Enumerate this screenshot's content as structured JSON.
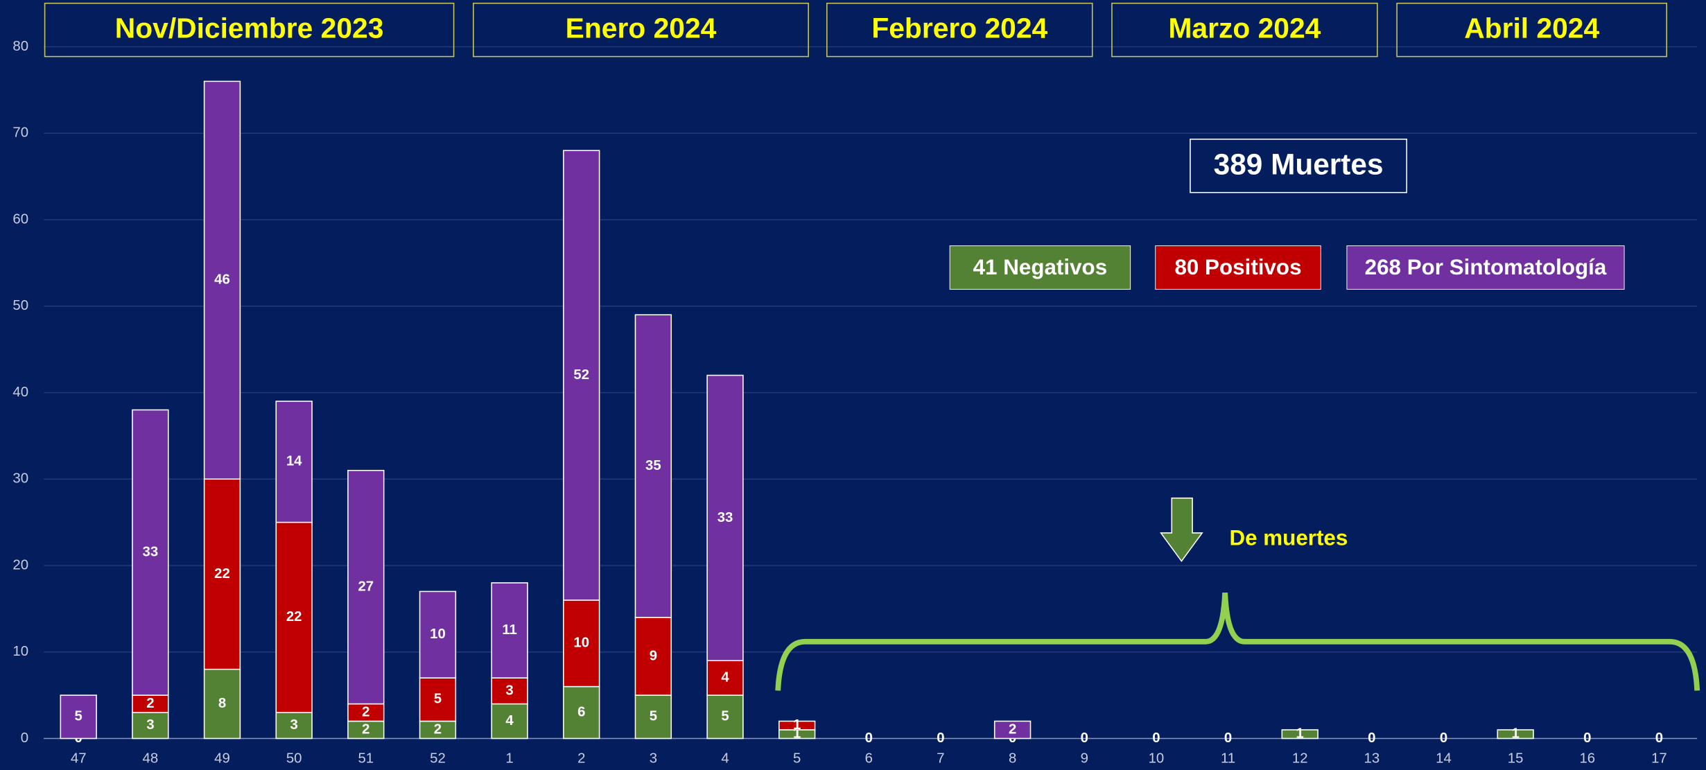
{
  "chart_data": {
    "type": "stacked_bar",
    "categories": [
      "47",
      "48",
      "49",
      "50",
      "51",
      "52",
      "1",
      "2",
      "3",
      "4",
      "5",
      "6",
      "7",
      "8",
      "9",
      "10",
      "11",
      "12",
      "13",
      "14",
      "15",
      "16",
      "17"
    ],
    "series": [
      {
        "name": "41 Negativos",
        "color": "#548235",
        "values": [
          0,
          3,
          8,
          3,
          2,
          2,
          4,
          6,
          5,
          5,
          1,
          0,
          0,
          0,
          0,
          0,
          0,
          1,
          0,
          0,
          1,
          0,
          0
        ]
      },
      {
        "name": "80 Positivos",
        "color": "#c00000",
        "values": [
          0,
          2,
          22,
          22,
          2,
          5,
          3,
          10,
          9,
          4,
          1,
          0,
          0,
          0,
          0,
          0,
          0,
          0,
          0,
          0,
          0,
          0,
          0
        ]
      },
      {
        "name": "268 Por Sintomatología",
        "color": "#7030a0",
        "values": [
          5,
          33,
          46,
          14,
          27,
          10,
          11,
          52,
          35,
          33,
          0,
          0,
          0,
          2,
          0,
          0,
          0,
          0,
          0,
          0,
          0,
          0,
          0
        ]
      }
    ],
    "ylim": [
      0,
      80
    ],
    "yticks": [
      0,
      10,
      20,
      30,
      40,
      50,
      60,
      70,
      80
    ],
    "grid": true,
    "periods": [
      "Nov/Diciembre 2023",
      "Enero 2024",
      "Febrero 2024",
      "Marzo 2024",
      "Abril 2024"
    ],
    "annotations": [
      "389 Muertes",
      "De muertes"
    ]
  }
}
